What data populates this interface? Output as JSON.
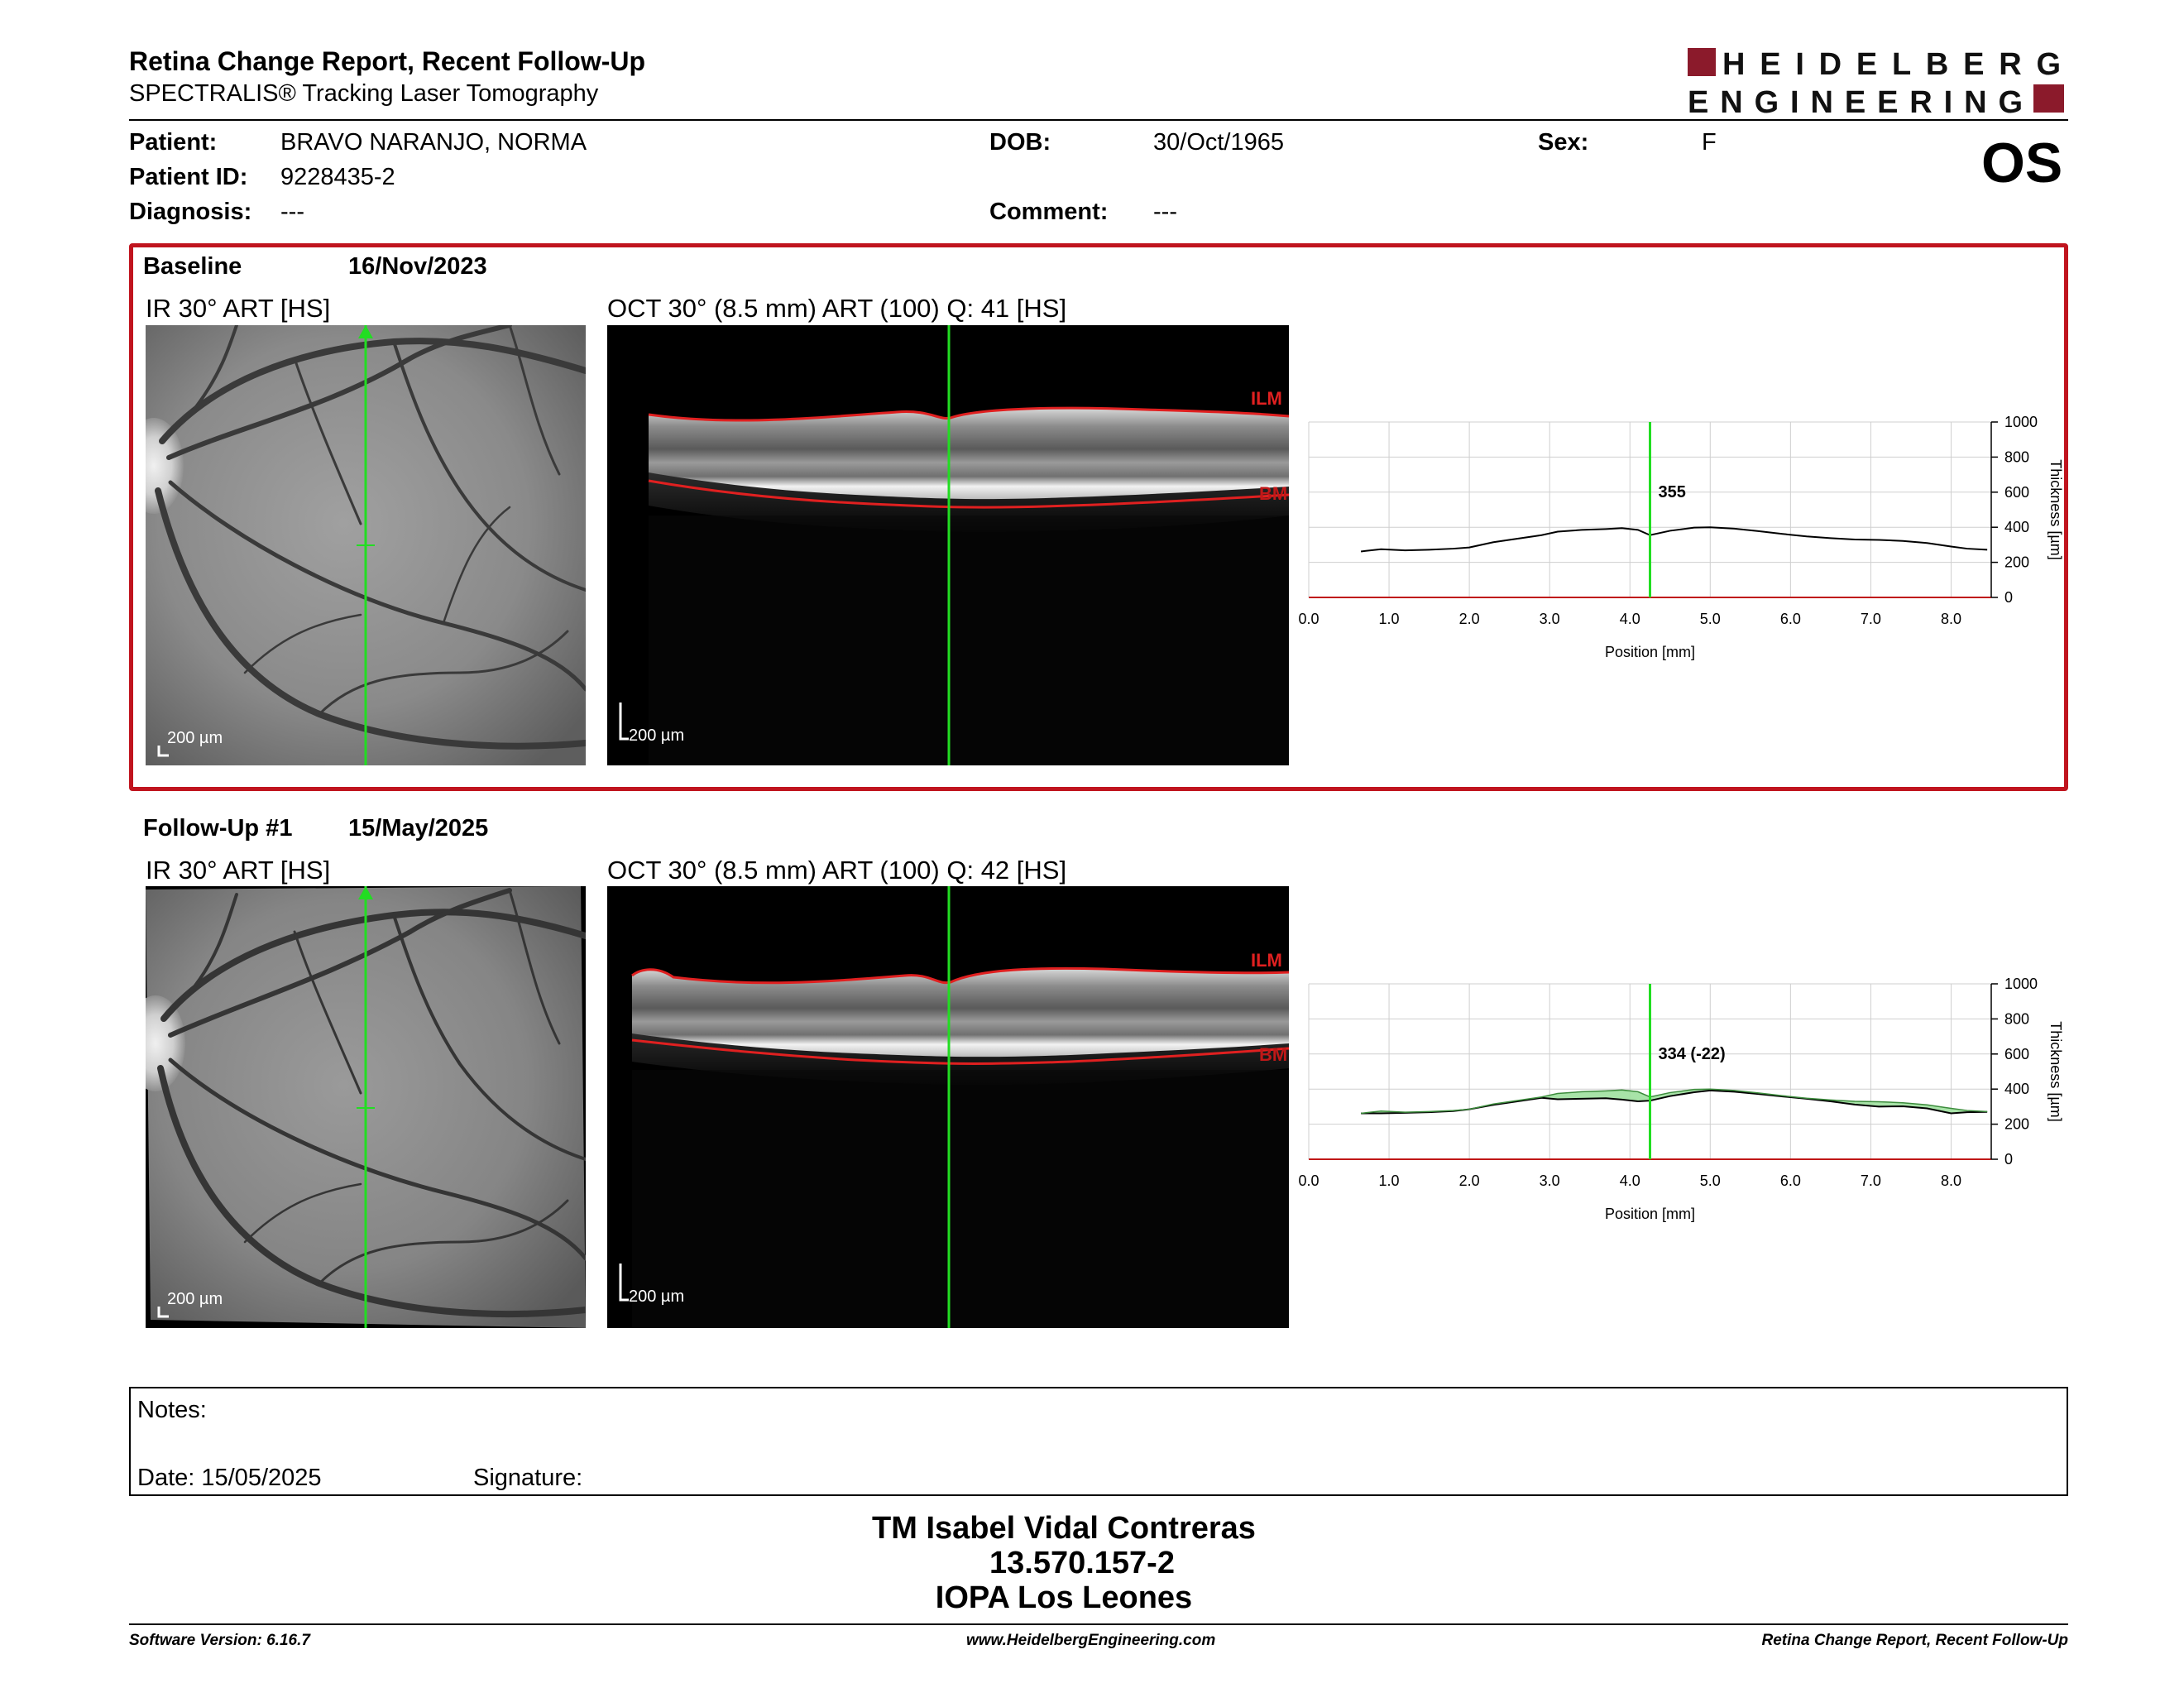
{
  "header": {
    "title": "Retina Change Report, Recent Follow-Up",
    "subtitle": "SPECTRALIS® Tracking Laser Tomography",
    "logo_line1": "HEIDELBERG",
    "logo_line2": "ENGINEERING",
    "eye": "OS"
  },
  "patient": {
    "patient_label": "Patient:",
    "patient_value": "BRAVO NARANJO, NORMA",
    "id_label": "Patient ID:",
    "id_value": "9228435-2",
    "diagnosis_label": "Diagnosis:",
    "diagnosis_value": "---",
    "dob_label": "DOB:",
    "dob_value": "30/Oct/1965",
    "comment_label": "Comment:",
    "comment_value": "---",
    "sex_label": "Sex:",
    "sex_value": "F"
  },
  "baseline": {
    "label": "Baseline",
    "date": "16/Nov/2023",
    "ir_caption": "IR 30° ART [HS]",
    "oct_caption": "OCT 30° (8.5 mm) ART (100) Q: 41 [HS]",
    "ir_scale": "200 µm",
    "oct_scale": "200 µm",
    "ilm": "ILM",
    "bm": "BM"
  },
  "followup": {
    "label": "Follow-Up #1",
    "date": "15/May/2025",
    "ir_caption": "IR 30° ART [HS]",
    "oct_caption": "OCT 30° (8.5 mm) ART (100) Q: 42 [HS]",
    "ir_scale": "200 µm",
    "oct_scale": "200 µm",
    "ilm": "ILM",
    "bm": "BM"
  },
  "chart_data": [
    {
      "type": "line",
      "name": "baseline-thickness",
      "xlabel": "Position [mm]",
      "ylabel": "Thickness [µm]",
      "xlim": [
        0.0,
        8.5
      ],
      "ylim": [
        0,
        1000
      ],
      "x_ticks": [
        "0.0",
        "1.0",
        "2.0",
        "3.0",
        "4.0",
        "5.0",
        "6.0",
        "7.0",
        "8.0"
      ],
      "y_ticks": [
        "0",
        "200",
        "400",
        "600",
        "800",
        "1000"
      ],
      "marker_x": 4.25,
      "marker_label": "355",
      "series": [
        {
          "x": [
            0.65,
            0.9,
            1.2,
            1.5,
            1.8,
            2.0,
            2.3,
            2.6,
            2.9,
            3.1,
            3.4,
            3.7,
            3.9,
            4.1,
            4.25,
            4.5,
            4.8,
            5.0,
            5.3,
            5.6,
            5.9,
            6.2,
            6.5,
            6.8,
            7.1,
            7.4,
            7.7,
            8.0,
            8.2,
            8.45
          ],
          "y": [
            262,
            275,
            268,
            272,
            278,
            285,
            315,
            335,
            355,
            375,
            385,
            390,
            395,
            385,
            355,
            380,
            398,
            400,
            392,
            378,
            362,
            348,
            338,
            330,
            328,
            322,
            310,
            290,
            278,
            272
          ]
        }
      ]
    },
    {
      "type": "line",
      "name": "followup-thickness",
      "xlabel": "Position [mm]",
      "ylabel": "Thickness [µm]",
      "xlim": [
        0.0,
        8.5
      ],
      "ylim": [
        0,
        1000
      ],
      "x_ticks": [
        "0.0",
        "1.0",
        "2.0",
        "3.0",
        "4.0",
        "5.0",
        "6.0",
        "7.0",
        "8.0"
      ],
      "y_ticks": [
        "0",
        "200",
        "400",
        "600",
        "800",
        "1000"
      ],
      "marker_x": 4.25,
      "marker_label": "334 (-22)",
      "series": [
        {
          "x": [
            0.65,
            0.9,
            1.2,
            1.5,
            1.8,
            2.0,
            2.3,
            2.6,
            2.9,
            3.1,
            3.4,
            3.7,
            3.9,
            4.1,
            4.25,
            4.5,
            4.8,
            5.0,
            5.3,
            5.6,
            5.9,
            6.2,
            6.5,
            6.8,
            7.1,
            7.4,
            7.7,
            8.0,
            8.2,
            8.45
          ],
          "y": [
            262,
            262,
            265,
            268,
            275,
            285,
            310,
            330,
            350,
            342,
            345,
            348,
            340,
            330,
            334,
            360,
            382,
            392,
            385,
            372,
            358,
            345,
            330,
            312,
            300,
            302,
            290,
            262,
            268,
            270
          ]
        },
        {
          "x": [
            0.65,
            0.9,
            1.2,
            1.5,
            1.8,
            2.0,
            2.3,
            2.6,
            2.9,
            3.1,
            3.4,
            3.7,
            3.9,
            4.1,
            4.25,
            4.5,
            4.8,
            5.0,
            5.3,
            5.6,
            5.9,
            6.2,
            6.5,
            6.8,
            7.1,
            7.4,
            7.7,
            8.0,
            8.2,
            8.45
          ],
          "y": [
            262,
            275,
            268,
            272,
            278,
            285,
            315,
            335,
            355,
            375,
            385,
            390,
            395,
            385,
            355,
            380,
            398,
            400,
            392,
            378,
            362,
            348,
            338,
            330,
            328,
            322,
            310,
            290,
            278,
            272
          ]
        }
      ]
    }
  ],
  "notes": {
    "label": "Notes:",
    "date_label": "Date: 15/05/2025",
    "signature_label": "Signature:"
  },
  "signature": {
    "line1": "TM Isabel Vidal Contreras",
    "line2": "13.570.157-2",
    "line3": "IOPA Los Leones"
  },
  "footer": {
    "left": "Software Version: 6.16.7",
    "center": "www.HeidelbergEngineering.com",
    "right": "Retina Change Report, Recent Follow-Up"
  },
  "colors": {
    "brand_red": "#8b1a2b",
    "box_red": "#c0141e",
    "scan_green": "#22dd22",
    "segment_red": "#e02020",
    "diff_fill": "#9fe09f"
  }
}
